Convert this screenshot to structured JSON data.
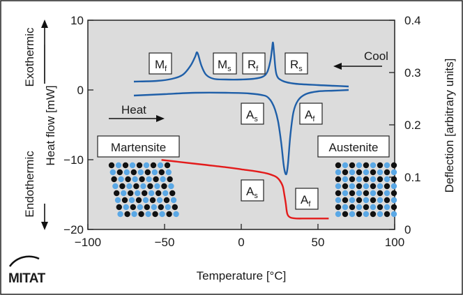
{
  "chart_data": {
    "type": "line",
    "xlabel": "Temperature [°C]",
    "ylabel_left": "Heat flow [mW]",
    "ylabel_left_top": "Exothermic",
    "ylabel_left_bottom": "Endothermic",
    "ylabel_right": "Deflection [arbitrary units]",
    "xlim": [
      -100,
      100
    ],
    "ylim_left": [
      -20,
      10
    ],
    "ylim_right": [
      0,
      0.4
    ],
    "x_ticks": [
      -100,
      -50,
      0,
      50,
      100
    ],
    "y_left_ticks": [
      10,
      0,
      -10,
      -20
    ],
    "y_right_ticks": [
      0.4,
      0.3,
      0.2,
      0.1,
      0
    ],
    "x_tick_labels": [
      "−100",
      "−50",
      "0",
      "50",
      "100"
    ],
    "y_left_tick_labels": [
      "10",
      "0",
      "−10",
      "−20"
    ],
    "y_right_tick_labels": [
      "0.4",
      "0.3",
      "0.2",
      "0.1",
      "0"
    ],
    "grid": false,
    "plot_background": "#dcdcdc",
    "series": [
      {
        "color": "#1f5fa8",
        "axis": "left",
        "x": [
          -70,
          -55,
          -45,
          -38,
          -33,
          -30,
          -29,
          -28,
          -26,
          -23,
          -18,
          -10,
          0,
          8,
          14,
          17,
          19,
          20,
          20.7,
          21.5,
          23,
          27,
          35,
          50,
          60,
          70
        ],
        "y": [
          1.2,
          1.3,
          1.6,
          2.2,
          3.5,
          4.8,
          5.4,
          5.0,
          3.5,
          2.2,
          1.6,
          1.5,
          1.5,
          1.6,
          1.9,
          2.6,
          4.2,
          5.8,
          6.8,
          5.0,
          2.2,
          1.3,
          0.9,
          0.7,
          0.6,
          0.5
        ]
      },
      {
        "color": "#1f5fa8",
        "axis": "left",
        "x": [
          -70,
          -50,
          -30,
          -10,
          5,
          15,
          18,
          20,
          22,
          24,
          26,
          27.5,
          28.5,
          29.5,
          30.5,
          32,
          34,
          37,
          42,
          50,
          60,
          70
        ],
        "y": [
          -0.8,
          -0.6,
          -0.4,
          -0.4,
          -0.5,
          -0.8,
          -1.2,
          -1.8,
          -2.8,
          -4.5,
          -7.5,
          -10.5,
          -11.8,
          -12.0,
          -10.5,
          -6.5,
          -3.2,
          -1.5,
          -0.6,
          -0.2,
          -0.1,
          0.0
        ]
      },
      {
        "color": "#e31b1b",
        "axis": "right",
        "x": [
          -52,
          -40,
          -25,
          -10,
          0,
          10,
          17,
          21,
          23,
          25,
          27,
          28,
          29,
          30,
          32,
          36,
          42,
          50,
          57
        ],
        "y": [
          0.133,
          0.129,
          0.124,
          0.119,
          0.115,
          0.111,
          0.107,
          0.103,
          0.1,
          0.094,
          0.083,
          0.068,
          0.05,
          0.03,
          0.023,
          0.021,
          0.021,
          0.021,
          0.021
        ]
      }
    ],
    "annotations": {
      "cool": "Cool",
      "heat": "Heat",
      "martensite": "Martensite",
      "austenite": "Austenite",
      "mf": "M",
      "mf_sub": "f",
      "ms": "M",
      "ms_sub": "s",
      "rf": "R",
      "rf_sub": "f",
      "rs": "R",
      "rs_sub": "s",
      "as_blue": "A",
      "as_blue_sub": "s",
      "af_blue": "A",
      "af_blue_sub": "f",
      "as_red": "A",
      "as_red_sub": "s",
      "af_red": "A",
      "af_red_sub": "f"
    }
  },
  "logo": {
    "text": "MITAT"
  }
}
